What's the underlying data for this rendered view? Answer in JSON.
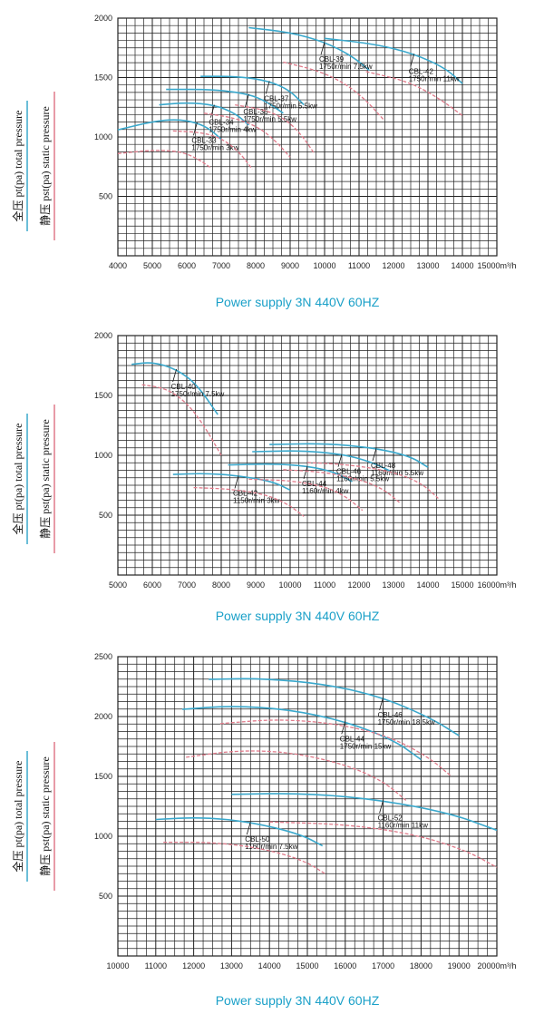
{
  "colors": {
    "total": "#3aa8cc",
    "static": "#e07a8a",
    "grid": "#222222",
    "caption": "#1aa0c8"
  },
  "chart_data": [
    {
      "type": "line",
      "caption": "Power supply  3N 440V  60HZ",
      "ylabel_total": "全压 pt(pa)  total pressure",
      "ylabel_static": "静压 pst(pa) static pressure",
      "xlim": [
        4000,
        15000
      ],
      "ylim": [
        0,
        2000
      ],
      "xticks": [
        "4000",
        "5000",
        "6000",
        "7000",
        "8000",
        "9000",
        "10000",
        "11000",
        "12000",
        "13000",
        "14000",
        "15000m³/h"
      ],
      "yticks": [
        "500",
        "1000",
        "1500",
        "2000"
      ],
      "series": [
        {
          "name": "CBL-33",
          "label": "CBL-33",
          "label2": "1750r/min 3kw",
          "kind": "total",
          "x": [
            4000,
            5000,
            5700,
            6300,
            6700,
            7000
          ],
          "y": [
            1060,
            1130,
            1150,
            1120,
            1060,
            980
          ]
        },
        {
          "name": "CBL-33",
          "kind": "static",
          "x": [
            4000,
            5000,
            5800,
            6300,
            6700
          ],
          "y": [
            860,
            890,
            880,
            820,
            740
          ]
        },
        {
          "name": "CBL-34",
          "label": "CBL-34",
          "label2": "1750r/min 4kw",
          "kind": "total",
          "x": [
            5200,
            6000,
            6800,
            7400,
            7800
          ],
          "y": [
            1270,
            1290,
            1270,
            1200,
            1100
          ]
        },
        {
          "name": "CBL-34",
          "kind": "static",
          "x": [
            5600,
            6400,
            7000,
            7500,
            7900
          ],
          "y": [
            1050,
            1040,
            990,
            880,
            730
          ]
        },
        {
          "name": "CBL-36",
          "label": "CBL-36",
          "label2": "1750r/min 5.5kw",
          "kind": "total",
          "x": [
            5400,
            6800,
            7800,
            8300,
            8800
          ],
          "y": [
            1400,
            1400,
            1360,
            1300,
            1200
          ]
        },
        {
          "name": "CBL-36",
          "kind": "static",
          "x": [
            6500,
            7400,
            8100,
            8600,
            9000
          ],
          "y": [
            1200,
            1160,
            1080,
            960,
            830
          ]
        },
        {
          "name": "CBL-37",
          "label": "CBL-37",
          "label2": "1750r/min 5.5kw",
          "kind": "total",
          "x": [
            6400,
            7500,
            8400,
            9000,
            9400
          ],
          "y": [
            1510,
            1510,
            1470,
            1390,
            1270
          ]
        },
        {
          "name": "CBL-37",
          "kind": "static",
          "x": [
            7400,
            8400,
            9000,
            9400,
            9700
          ],
          "y": [
            1270,
            1220,
            1120,
            990,
            860
          ]
        },
        {
          "name": "CBL-39",
          "label": "CBL-39",
          "label2": "1750r/min 7.5kw",
          "kind": "total",
          "x": [
            7800,
            9000,
            10000,
            10800,
            11300
          ],
          "y": [
            1920,
            1880,
            1800,
            1680,
            1560
          ]
        },
        {
          "name": "CBL-39",
          "kind": "static",
          "x": [
            8800,
            9800,
            10600,
            11200,
            11700
          ],
          "y": [
            1630,
            1560,
            1450,
            1310,
            1150
          ]
        },
        {
          "name": "CBL-42",
          "label": "CBL-42",
          "label2": "1750r/min 11kw",
          "kind": "total",
          "x": [
            10000,
            11500,
            12600,
            13500,
            14000
          ],
          "y": [
            1830,
            1780,
            1700,
            1580,
            1450
          ]
        },
        {
          "name": "CBL-42",
          "kind": "static",
          "x": [
            11200,
            12400,
            13300,
            14000
          ],
          "y": [
            1550,
            1470,
            1330,
            1180
          ]
        }
      ]
    },
    {
      "type": "line",
      "caption": "Power supply  3N 440V  60HZ",
      "ylabel_total": "全压 pt(pa)  total pressure",
      "ylabel_static": "静压 pst(pa) static pressure",
      "xlim": [
        5000,
        16000
      ],
      "ylim": [
        0,
        2000
      ],
      "xticks": [
        "5000",
        "6000",
        "7000",
        "8000",
        "9000",
        "10000",
        "11000",
        "12000",
        "13000",
        "14000",
        "15000",
        "16000m³/h"
      ],
      "yticks": [
        "500",
        "1000",
        "1500",
        "2000"
      ],
      "series": [
        {
          "name": "CBL-40",
          "label": "CBL-40",
          "label2": "1750r/min 7.5kw",
          "kind": "total",
          "x": [
            5400,
            6000,
            6700,
            7300,
            7900
          ],
          "y": [
            1760,
            1780,
            1720,
            1590,
            1340
          ]
        },
        {
          "name": "CBL-40",
          "kind": "static",
          "x": [
            5700,
            6400,
            7000,
            7500,
            8000
          ],
          "y": [
            1590,
            1560,
            1440,
            1250,
            1000
          ]
        },
        {
          "name": "CBL-42",
          "label": "CBL-42",
          "label2": "1150r/min 3kw",
          "kind": "total",
          "x": [
            6600,
            7500,
            8500,
            9500,
            10000
          ],
          "y": [
            840,
            850,
            830,
            780,
            710
          ]
        },
        {
          "name": "CBL-42",
          "kind": "static",
          "x": [
            7200,
            8200,
            9200,
            9900,
            10400
          ],
          "y": [
            730,
            720,
            680,
            600,
            490
          ]
        },
        {
          "name": "CBL-44",
          "label": "CBL-44",
          "label2": "1160r/min 4kw",
          "kind": "total",
          "x": [
            8200,
            9500,
            10500,
            11300,
            11800
          ],
          "y": [
            920,
            930,
            910,
            860,
            780
          ]
        },
        {
          "name": "CBL-44",
          "kind": "static",
          "x": [
            8800,
            10000,
            11000,
            11600,
            12100
          ],
          "y": [
            800,
            790,
            740,
            660,
            540
          ]
        },
        {
          "name": "CBL-46",
          "label": "CBL-46",
          "label2": "1160r/min 5.5kw",
          "kind": "total",
          "x": [
            8900,
            10300,
            11500,
            12300,
            12900
          ],
          "y": [
            1030,
            1040,
            1010,
            950,
            870
          ]
        },
        {
          "name": "CBL-46",
          "kind": "static",
          "x": [
            9800,
            11000,
            12000,
            12700,
            13200
          ],
          "y": [
            880,
            860,
            800,
            720,
            600
          ]
        },
        {
          "name": "CBL-48",
          "label": "CBL-48",
          "label2": "1160r/min 5.5kw",
          "kind": "total",
          "x": [
            9400,
            11000,
            12500,
            13500,
            14000
          ],
          "y": [
            1090,
            1100,
            1060,
            990,
            900
          ]
        },
        {
          "name": "CBL-48",
          "kind": "static",
          "x": [
            10500,
            11800,
            13000,
            13800,
            14300
          ],
          "y": [
            940,
            920,
            860,
            770,
            640
          ]
        }
      ]
    },
    {
      "type": "line",
      "caption": "Power supply  3N 440V  60HZ",
      "ylabel_total": "全压 pt(pa)  total pressure",
      "ylabel_static": "静压 pst(pa) static pressure",
      "xlim": [
        10000,
        20000
      ],
      "ylim": [
        0,
        2500
      ],
      "xticks": [
        "10000",
        "11000",
        "12000",
        "13000",
        "14000",
        "15000",
        "16000",
        "17000",
        "18000",
        "19000",
        "20000m³/h"
      ],
      "yticks": [
        "500",
        "1000",
        "1500",
        "2000",
        "2500"
      ],
      "series": [
        {
          "name": "CBL-44",
          "label": "CBL-44",
          "label2": "1750r/min 15kw",
          "kind": "total",
          "x": [
            11700,
            13000,
            14500,
            16000,
            17300,
            18000
          ],
          "y": [
            2060,
            2090,
            2060,
            1960,
            1800,
            1640
          ]
        },
        {
          "name": "CBL-44",
          "kind": "static",
          "x": [
            11800,
            13200,
            14600,
            16000,
            17000,
            17600
          ],
          "y": [
            1660,
            1720,
            1700,
            1600,
            1460,
            1300
          ]
        },
        {
          "name": "CBL-46",
          "label": "CBL-46",
          "label2": "1750r/min 18.5kw",
          "kind": "total",
          "x": [
            12400,
            13800,
            15500,
            17000,
            18300,
            19000
          ],
          "y": [
            2310,
            2320,
            2270,
            2160,
            1980,
            1840
          ]
        },
        {
          "name": "CBL-46",
          "kind": "static",
          "x": [
            12700,
            14200,
            15800,
            17200,
            18200,
            18800
          ],
          "y": [
            1940,
            1980,
            1940,
            1830,
            1660,
            1500
          ]
        },
        {
          "name": "CBL-50",
          "label": "CBL-50",
          "label2": "1160r/min 7.5kw",
          "kind": "total",
          "x": [
            11000,
            12200,
            13500,
            14800,
            15400
          ],
          "y": [
            1140,
            1160,
            1120,
            1020,
            920
          ]
        },
        {
          "name": "CBL-50",
          "kind": "static",
          "x": [
            11200,
            12500,
            13800,
            14900,
            15500
          ],
          "y": [
            950,
            950,
            900,
            800,
            680
          ]
        },
        {
          "name": "CBL-52",
          "label": "CBL-52",
          "label2": "1160r/min 11kw",
          "kind": "total",
          "x": [
            13000,
            15000,
            17000,
            18800,
            20000
          ],
          "y": [
            1350,
            1360,
            1300,
            1190,
            1050
          ]
        },
        {
          "name": "CBL-52",
          "kind": "static",
          "x": [
            14000,
            16000,
            17800,
            19200,
            20000
          ],
          "y": [
            1120,
            1100,
            1020,
            880,
            740
          ]
        }
      ]
    }
  ]
}
